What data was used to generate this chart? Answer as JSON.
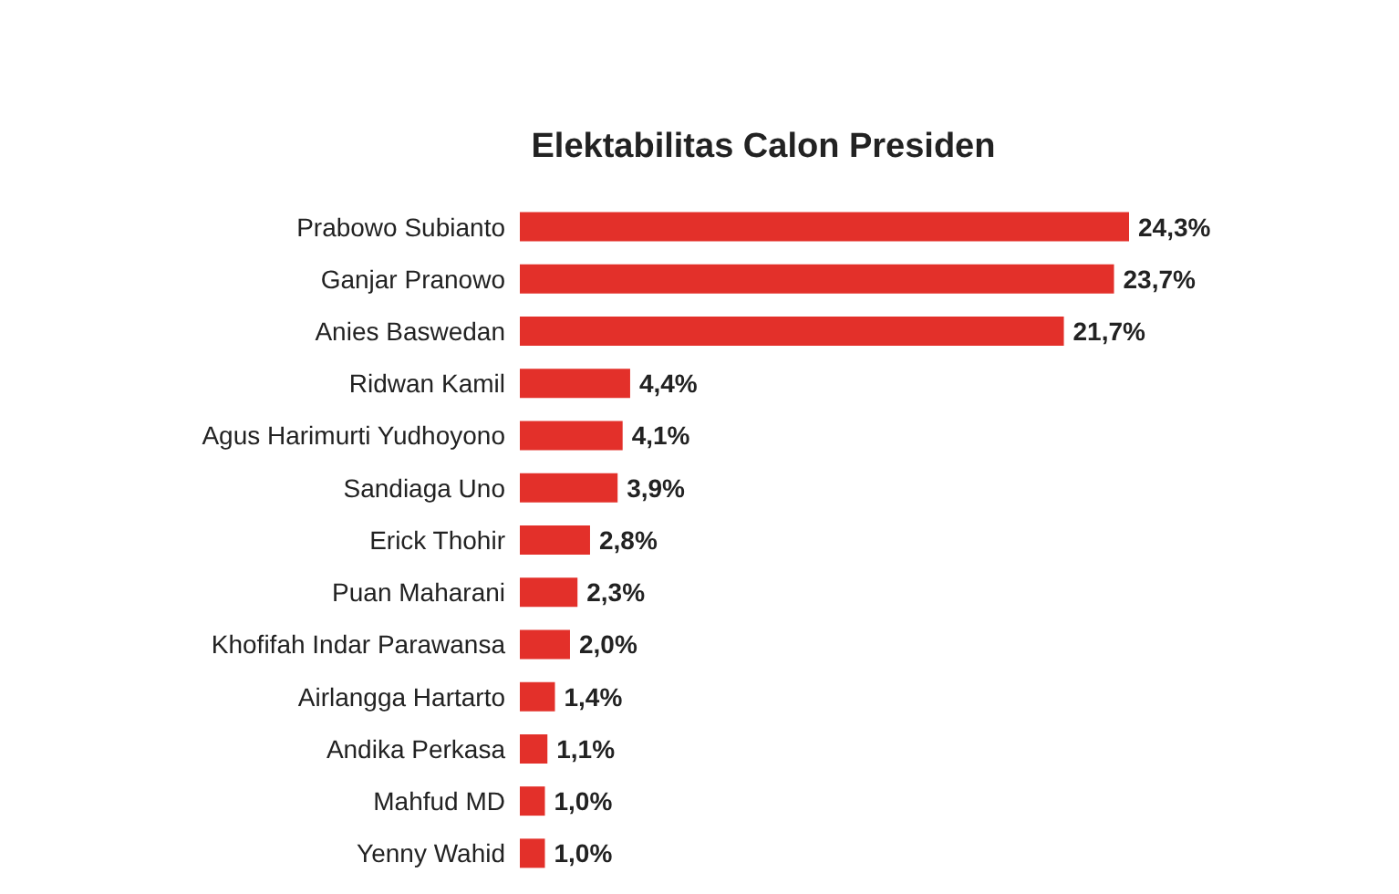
{
  "chart_data": {
    "type": "bar",
    "orientation": "horizontal",
    "title": "Elektabilitas Calon Presiden",
    "categories": [
      "Prabowo Subianto",
      "Ganjar Pranowo",
      "Anies Baswedan",
      "Ridwan Kamil",
      "Agus Harimurti Yudhoyono",
      "Sandiaga Uno",
      "Erick Thohir",
      "Puan Maharani",
      "Khofifah Indar Parawansa",
      "Airlangga Hartarto",
      "Andika Perkasa",
      "Mahfud MD",
      "Yenny Wahid"
    ],
    "values": [
      24.3,
      23.7,
      21.7,
      4.4,
      4.1,
      3.9,
      2.8,
      2.3,
      2.0,
      1.4,
      1.1,
      1.0,
      1.0
    ],
    "value_labels": [
      "24,3%",
      "23,7%",
      "21,7%",
      "4,4%",
      "4,1%",
      "3,9%",
      "2,8%",
      "2,3%",
      "2,0%",
      "1,4%",
      "1,1%",
      "1,0%",
      "1,0%"
    ],
    "color": "#e3302a"
  }
}
